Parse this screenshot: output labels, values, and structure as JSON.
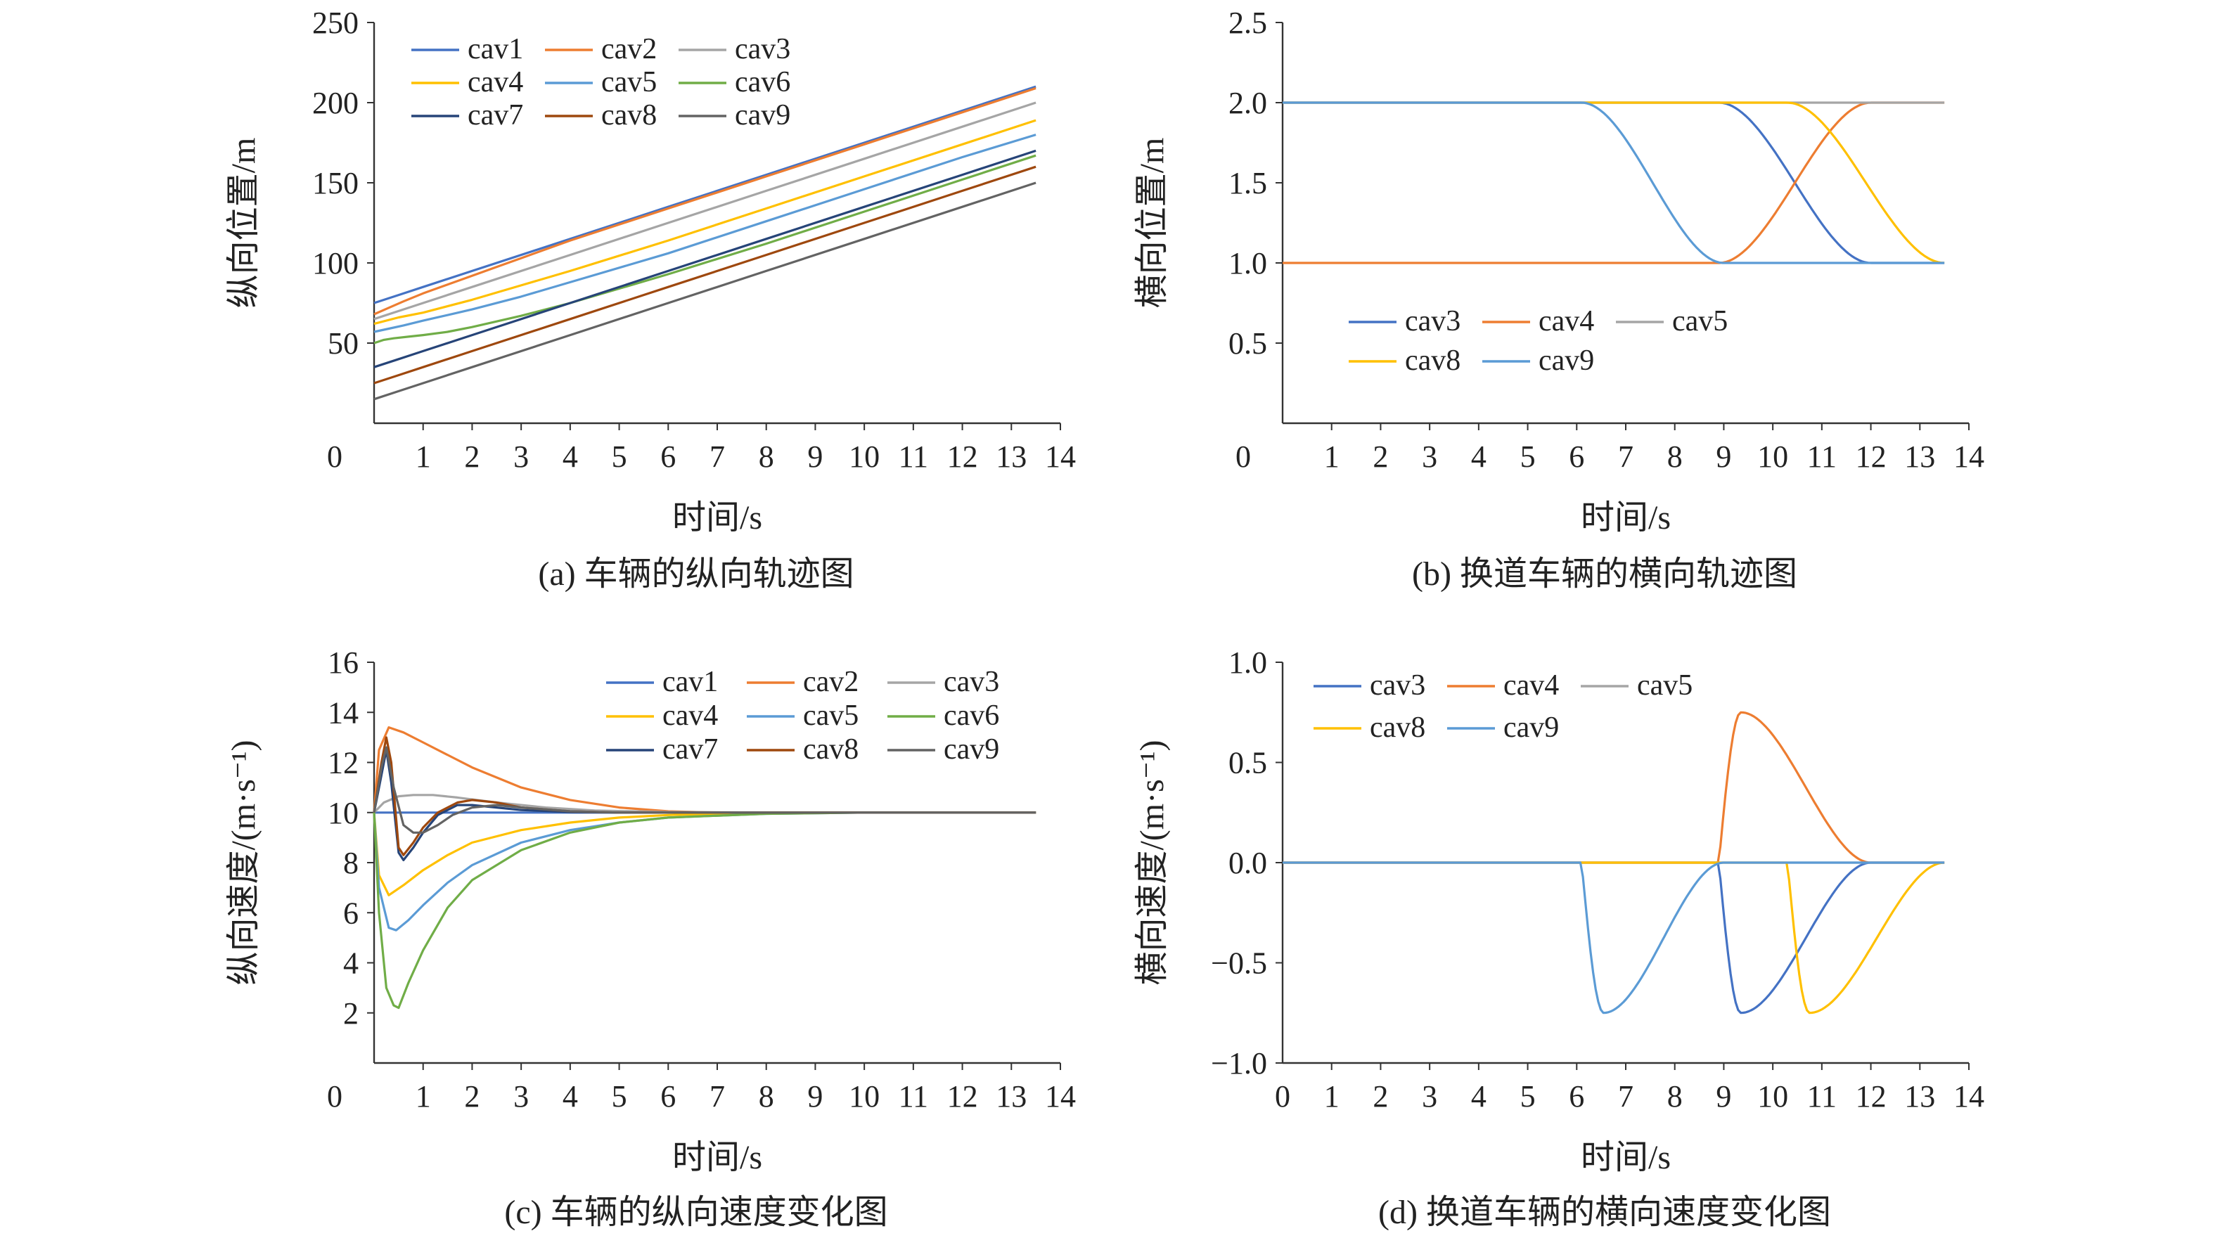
{
  "chart_data": [
    {
      "id": "a",
      "type": "line",
      "caption": "(a) 车辆的纵向轨迹图",
      "xlabel": "时间/s",
      "ylabel": "纵向位置/m",
      "xlim": [
        0,
        14
      ],
      "ylim": [
        0,
        250
      ],
      "xticks": [
        "0",
        "1",
        "2",
        "3",
        "4",
        "5",
        "6",
        "7",
        "8",
        "9",
        "10",
        "11",
        "12",
        "13",
        "14"
      ],
      "yticks": [
        "0",
        "50",
        "100",
        "150",
        "200",
        "250"
      ],
      "grid": false,
      "legend_position": "top-left",
      "legend_columns": 3,
      "series": [
        {
          "name": "cav1",
          "color": "#4472C4",
          "x": [
            0,
            0.5,
            1,
            2,
            4,
            6,
            8,
            10,
            12,
            13.5
          ],
          "y": [
            75,
            80,
            85,
            95,
            115,
            135,
            155,
            175,
            195,
            210
          ]
        },
        {
          "name": "cav2",
          "color": "#ED7D31",
          "x": [
            0,
            0.3,
            0.6,
            1,
            2,
            3,
            4,
            6,
            8,
            10,
            12,
            13.5
          ],
          "y": [
            68,
            72,
            76,
            81,
            92,
            103,
            114,
            134,
            154,
            174,
            194,
            209
          ]
        },
        {
          "name": "cav3",
          "color": "#A5A5A5",
          "x": [
            0,
            0.5,
            1,
            2,
            4,
            6,
            8,
            10,
            12,
            13.5
          ],
          "y": [
            65,
            70,
            75,
            85,
            105,
            125,
            145,
            165,
            185,
            200
          ]
        },
        {
          "name": "cav4",
          "color": "#FFC000",
          "x": [
            0,
            0.5,
            1,
            2,
            3,
            4,
            6,
            8,
            10,
            12,
            13.5
          ],
          "y": [
            62,
            66,
            69,
            77,
            86,
            95,
            114,
            134,
            154,
            174,
            189
          ]
        },
        {
          "name": "cav5",
          "color": "#5B9BD5",
          "x": [
            0,
            0.3,
            0.6,
            1,
            2,
            3,
            4,
            6,
            8,
            10,
            12,
            13.5
          ],
          "y": [
            57,
            59,
            61,
            64,
            71,
            79,
            88,
            106,
            126,
            146,
            166,
            180
          ]
        },
        {
          "name": "cav6",
          "color": "#70AD47",
          "x": [
            0,
            0.2,
            0.4,
            0.7,
            1,
            1.5,
            2,
            3,
            4,
            5,
            6,
            8,
            10,
            12,
            13.5
          ],
          "y": [
            50,
            52,
            53,
            54,
            55,
            57,
            60,
            67,
            75,
            84,
            93,
            112,
            132,
            152,
            167
          ]
        },
        {
          "name": "cav7",
          "color": "#264478",
          "x": [
            0,
            0.5,
            1,
            2,
            4,
            6,
            8,
            10,
            12,
            13.5
          ],
          "y": [
            35,
            40,
            45,
            55,
            75,
            95,
            115,
            135,
            155,
            170
          ]
        },
        {
          "name": "cav8",
          "color": "#9E480E",
          "x": [
            0,
            0.5,
            1,
            2,
            4,
            6,
            8,
            10,
            12,
            13.5
          ],
          "y": [
            25,
            30,
            35,
            45,
            65,
            85,
            105,
            125,
            145,
            160
          ]
        },
        {
          "name": "cav9",
          "color": "#636363",
          "x": [
            0,
            0.5,
            1,
            2,
            4,
            6,
            8,
            10,
            12,
            13.5
          ],
          "y": [
            15,
            20,
            25,
            35,
            55,
            75,
            95,
            115,
            135,
            150
          ]
        }
      ]
    },
    {
      "id": "b",
      "type": "line",
      "caption": "(b) 换道车辆的横向轨迹图",
      "xlabel": "时间/s",
      "ylabel": "横向位置/m",
      "xlim": [
        0,
        14
      ],
      "ylim": [
        0,
        2.5
      ],
      "xticks": [
        "0",
        "1",
        "2",
        "3",
        "4",
        "5",
        "6",
        "7",
        "8",
        "9",
        "10",
        "11",
        "12",
        "13",
        "14"
      ],
      "yticks": [
        "0",
        "0.5",
        "1.0",
        "1.5",
        "2.0",
        "2.5"
      ],
      "grid": false,
      "legend_position": "bottom-left",
      "legend_columns": 3,
      "series": [
        {
          "name": "cav3",
          "color": "#4472C4",
          "transition": {
            "start": 8.9,
            "end": 12.0,
            "from": 2.0,
            "to": 1.0
          }
        },
        {
          "name": "cav4",
          "color": "#ED7D31",
          "transition": {
            "start": 8.9,
            "end": 12.0,
            "from": 1.0,
            "to": 2.0
          }
        },
        {
          "name": "cav5",
          "color": "#A5A5A5",
          "transition": null
        },
        {
          "name": "cav8",
          "color": "#FFC000",
          "transition": {
            "start": 10.3,
            "end": 13.5,
            "from": 2.0,
            "to": 1.0
          }
        },
        {
          "name": "cav9",
          "color": "#5B9BD5",
          "transition": {
            "start": 6.1,
            "end": 9.0,
            "from": 2.0,
            "to": 1.0
          }
        }
      ]
    },
    {
      "id": "c",
      "type": "line",
      "caption": "(c) 车辆的纵向速度变化图",
      "xlabel": "时间/s",
      "ylabel": "纵向速度/(m·s⁻¹)",
      "xlim": [
        0,
        14
      ],
      "ylim": [
        0,
        16
      ],
      "xticks": [
        "0",
        "1",
        "2",
        "3",
        "4",
        "5",
        "6",
        "7",
        "8",
        "9",
        "10",
        "11",
        "12",
        "13",
        "14"
      ],
      "yticks": [
        "0",
        "2",
        "4",
        "6",
        "8",
        "10",
        "12",
        "14",
        "16"
      ],
      "grid": false,
      "legend_position": "top-right",
      "legend_columns": 3,
      "series": [
        {
          "name": "cav1",
          "color": "#4472C4",
          "x": [
            0,
            13.5
          ],
          "y": [
            10,
            10
          ]
        },
        {
          "name": "cav2",
          "color": "#ED7D31",
          "x": [
            0,
            0.1,
            0.3,
            0.6,
            1,
            2,
            3,
            4,
            5,
            6,
            7,
            8,
            10,
            12,
            13.5
          ],
          "y": [
            10,
            12.5,
            13.4,
            13.2,
            12.8,
            11.8,
            11,
            10.5,
            10.2,
            10.05,
            10,
            10,
            10,
            10,
            10
          ]
        },
        {
          "name": "cav3",
          "color": "#A5A5A5",
          "x": [
            0,
            0.2,
            0.5,
            0.8,
            1.2,
            1.7,
            2.5,
            3.5,
            4.5,
            6,
            8,
            13.5
          ],
          "y": [
            10,
            10.4,
            10.65,
            10.7,
            10.7,
            10.6,
            10.4,
            10.2,
            10.08,
            10.02,
            10,
            10
          ]
        },
        {
          "name": "cav4",
          "color": "#FFC000",
          "x": [
            0,
            0.1,
            0.3,
            0.6,
            1,
            1.5,
            2,
            3,
            4,
            5,
            6,
            8,
            10,
            13.5
          ],
          "y": [
            10,
            7.5,
            6.7,
            7.1,
            7.7,
            8.3,
            8.8,
            9.3,
            9.6,
            9.8,
            9.9,
            10,
            10,
            10
          ]
        },
        {
          "name": "cav5",
          "color": "#5B9BD5",
          "x": [
            0,
            0.1,
            0.3,
            0.45,
            0.7,
            1,
            1.5,
            2,
            3,
            4,
            5,
            6,
            8,
            10,
            13.5
          ],
          "y": [
            10,
            7,
            5.4,
            5.3,
            5.7,
            6.3,
            7.2,
            7.9,
            8.8,
            9.3,
            9.6,
            9.8,
            9.95,
            10,
            10
          ]
        },
        {
          "name": "cav6",
          "color": "#70AD47",
          "x": [
            0,
            0.1,
            0.25,
            0.4,
            0.5,
            0.7,
            1,
            1.5,
            2,
            3,
            4,
            5,
            6,
            8,
            10,
            13.5
          ],
          "y": [
            10,
            6,
            3,
            2.3,
            2.2,
            3.2,
            4.5,
            6.2,
            7.3,
            8.5,
            9.2,
            9.6,
            9.8,
            9.95,
            10,
            10
          ]
        },
        {
          "name": "cav7",
          "color": "#264478",
          "x": [
            0,
            0.15,
            0.25,
            0.35,
            0.5,
            0.6,
            0.8,
            1,
            1.3,
            1.7,
            2,
            2.5,
            3,
            4,
            5,
            6,
            13.5
          ],
          "y": [
            10,
            11.5,
            12.5,
            11.2,
            8.4,
            8.1,
            8.6,
            9.2,
            9.9,
            10.3,
            10.3,
            10.2,
            10.1,
            10.02,
            10,
            10,
            10
          ]
        },
        {
          "name": "cav8",
          "color": "#9E480E",
          "x": [
            0,
            0.15,
            0.25,
            0.35,
            0.5,
            0.6,
            0.8,
            1,
            1.3,
            1.7,
            2,
            2.5,
            3,
            4,
            5,
            6,
            13.5
          ],
          "y": [
            10,
            12,
            13,
            12,
            8.6,
            8.3,
            8.8,
            9.4,
            10,
            10.4,
            10.5,
            10.4,
            10.2,
            10.05,
            10,
            10,
            10
          ]
        },
        {
          "name": "cav9",
          "color": "#636363",
          "x": [
            0,
            0.15,
            0.25,
            0.4,
            0.6,
            0.8,
            1,
            1.3,
            1.6,
            2,
            2.5,
            3,
            4,
            5,
            6,
            13.5
          ],
          "y": [
            10,
            11.8,
            12.6,
            11,
            9.5,
            9.2,
            9.2,
            9.5,
            9.9,
            10.2,
            10.3,
            10.2,
            10.05,
            10,
            10,
            10
          ]
        }
      ]
    },
    {
      "id": "d",
      "type": "line",
      "caption": "(d) 换道车辆的横向速度变化图",
      "xlabel": "时间/s",
      "ylabel": "横向速度/(m·s⁻¹)",
      "xlim": [
        0,
        14
      ],
      "ylim": [
        -1.0,
        1.0
      ],
      "xticks": [
        "0",
        "1",
        "2",
        "3",
        "4",
        "5",
        "6",
        "7",
        "8",
        "9",
        "10",
        "11",
        "12",
        "13",
        "14"
      ],
      "yticks": [
        "−1.0",
        "−0.5",
        "0.0",
        "0.5",
        "1.0"
      ],
      "grid": false,
      "legend_position": "top-left",
      "legend_columns": 3,
      "series": [
        {
          "name": "cav3",
          "color": "#4472C4",
          "pulse": {
            "start": 8.9,
            "peak": 9.35,
            "end": 12.0,
            "amp": -0.75
          }
        },
        {
          "name": "cav4",
          "color": "#ED7D31",
          "pulse": {
            "start": 8.9,
            "peak": 9.35,
            "end": 12.0,
            "amp": 0.75
          }
        },
        {
          "name": "cav5",
          "color": "#A5A5A5",
          "pulse": null
        },
        {
          "name": "cav8",
          "color": "#FFC000",
          "pulse": {
            "start": 10.3,
            "peak": 10.75,
            "end": 13.5,
            "amp": -0.75
          }
        },
        {
          "name": "cav9",
          "color": "#5B9BD5",
          "pulse": {
            "start": 6.1,
            "peak": 6.55,
            "end": 9.0,
            "amp": -0.75
          }
        }
      ]
    }
  ]
}
